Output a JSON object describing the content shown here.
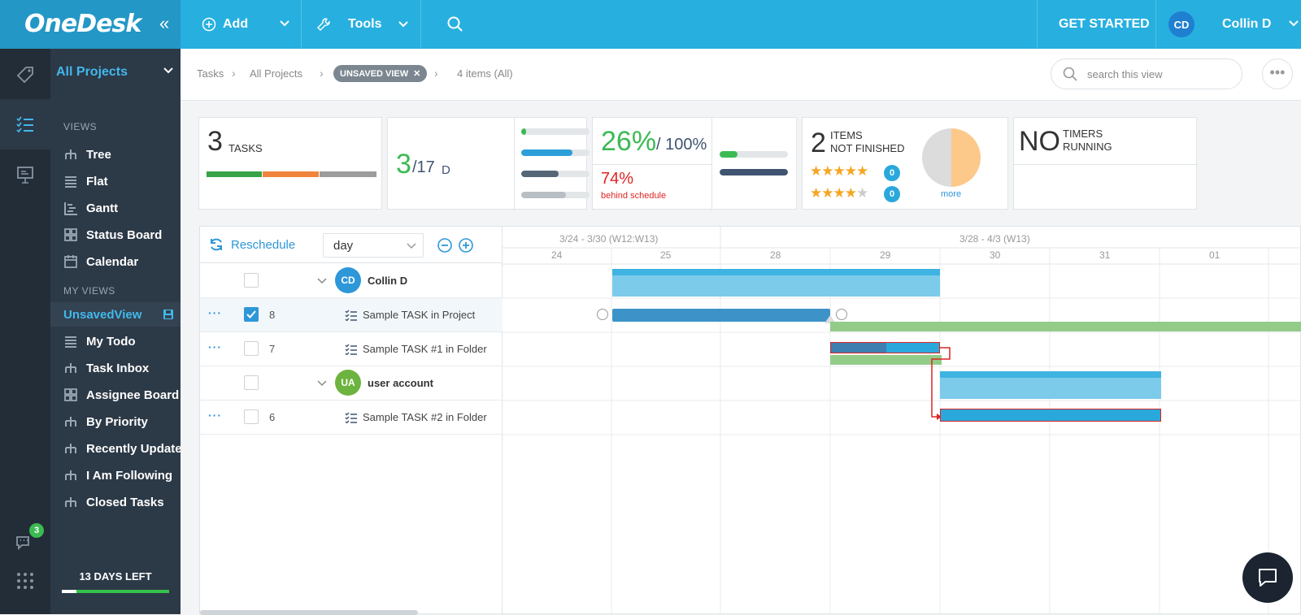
{
  "app": {
    "logo": "OneDesk"
  },
  "topbar": {
    "add_label": "Add",
    "tools_label": "Tools",
    "get_started": "GET STARTED",
    "user_initials": "CD",
    "user_name": "Collin D"
  },
  "sidebar": {
    "project": "All Projects",
    "views_heading": "VIEWS",
    "views": [
      {
        "label": "Tree"
      },
      {
        "label": "Flat"
      },
      {
        "label": "Gantt"
      },
      {
        "label": "Status Board"
      },
      {
        "label": "Calendar"
      }
    ],
    "my_views_heading": "MY VIEWS",
    "my_views": [
      {
        "label": "UnsavedView"
      },
      {
        "label": "My Todo"
      },
      {
        "label": "Task Inbox"
      },
      {
        "label": "Assignee Board"
      },
      {
        "label": "By Priority"
      },
      {
        "label": "Recently Updated"
      },
      {
        "label": "I Am Following"
      },
      {
        "label": "Closed Tasks"
      }
    ],
    "chat_badge": "3",
    "days_left": "13 DAYS LEFT",
    "days_left_progress": 0.14
  },
  "breadcrumb": {
    "items": [
      "Tasks",
      "All Projects"
    ],
    "view_pill": "UNSAVED VIEW",
    "count": "4 items (All)"
  },
  "search": {
    "placeholder": "search this view"
  },
  "cards": {
    "tasks": {
      "value": "3",
      "label": "TASKS",
      "segments": [
        {
          "color": "#36a348",
          "fraction": 0.33
        },
        {
          "color": "#f0843a",
          "fraction": 0.33
        },
        {
          "color": "#9c9c9c",
          "fraction": 0.34
        }
      ]
    },
    "days": {
      "value": "3",
      "total": "/17",
      "unit": "D",
      "bars": [
        {
          "fraction": 0.07,
          "color": "#3cba54"
        },
        {
          "fraction": 0.75,
          "color": "#2d9fd8"
        },
        {
          "fraction": 0.55,
          "color": "#556677"
        },
        {
          "fraction": 0.65,
          "color": "#b8bec4"
        }
      ]
    },
    "progress": {
      "value": "26%",
      "total": "/ 100%",
      "behind_value": "74%",
      "behind_label": "behind schedule",
      "bars": [
        {
          "fraction": 0.26,
          "color": "#3cba54"
        },
        {
          "fraction": 1.0,
          "color": "#3f5470"
        }
      ]
    },
    "items": {
      "value": "2",
      "label1": "ITEMS",
      "label2": "NOT FINISHED",
      "rating5_count": "0",
      "rating4_count": "0",
      "more": "more",
      "pie": [
        {
          "color": "#fcc98a",
          "fraction": 0.5
        },
        {
          "color": "#dcdcdc",
          "fraction": 0.5
        }
      ]
    },
    "timers": {
      "value": "NO",
      "label1": "TIMERS",
      "label2": "RUNNING"
    }
  },
  "gantt": {
    "reschedule": "Reschedule",
    "scale": "day",
    "period_headers": [
      "3/24 - 3/30 (W12:W13)",
      "3/28 - 4/3 (W13)"
    ],
    "days": [
      "24",
      "25",
      "28",
      "29",
      "30",
      "31",
      "01"
    ],
    "rows": [
      {
        "type": "group",
        "initials": "CD",
        "name": "Collin D",
        "avatar_color": "#2d97d8"
      },
      {
        "type": "task",
        "id": "8",
        "name": "Sample TASK in Project",
        "checked": true
      },
      {
        "type": "task",
        "id": "7",
        "name": "Sample TASK #1 in Folder",
        "checked": false
      },
      {
        "type": "group",
        "initials": "UA",
        "name": "user account",
        "avatar_color": "#6db33f"
      },
      {
        "type": "task",
        "id": "6",
        "name": "Sample TASK #2 in Folder",
        "checked": false
      }
    ]
  },
  "colors": {
    "accent": "#27b0df",
    "sidebar": "#2c3947",
    "rail": "#232d37",
    "bar_blue": "#2aa8dc",
    "bar_light": "#7ccbeb",
    "bar_green": "#93cc88",
    "critical": "#e02424"
  }
}
